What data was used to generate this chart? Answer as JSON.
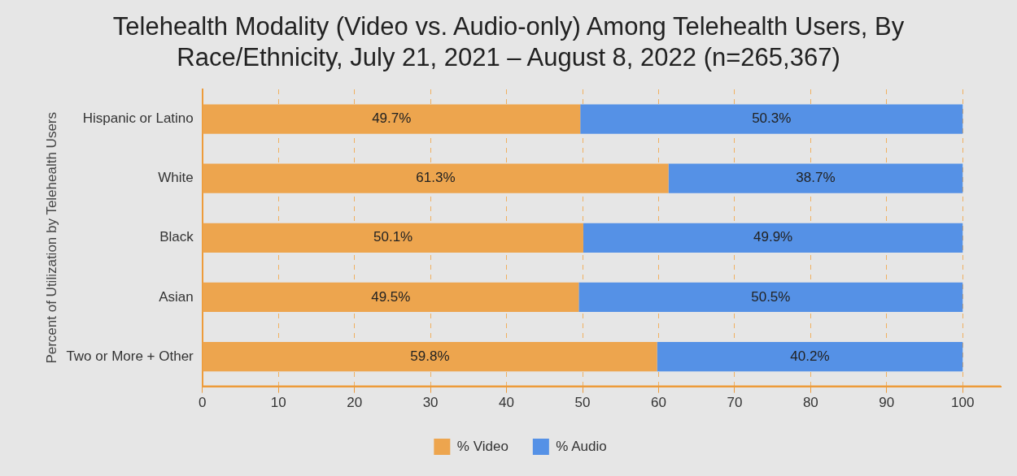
{
  "chart_data": {
    "type": "bar",
    "orientation": "horizontal",
    "stacked": true,
    "title": "Telehealth Modality (Video vs. Audio-only) Among Telehealth Users, By Race/Ethnicity, July 21, 2021 – August 8, 2022 (n=265,367)",
    "ylabel": "Percent of Utilization by Telehealth Users",
    "categories": [
      "Hispanic or Latino",
      "White",
      "Black",
      "Asian",
      "Two or More + Other"
    ],
    "series": [
      {
        "name": "% Video",
        "color": "#eda54e",
        "values": [
          49.7,
          61.3,
          50.1,
          49.5,
          59.8
        ],
        "value_labels": [
          "49.7%",
          "61.3%",
          "50.1%",
          "49.5%",
          "59.8%"
        ]
      },
      {
        "name": "% Audio",
        "color": "#5591e6",
        "values": [
          50.3,
          38.7,
          49.9,
          50.5,
          40.2
        ],
        "value_labels": [
          "50.3%",
          "38.7%",
          "49.9%",
          "50.5%",
          "40.2%"
        ]
      }
    ],
    "xlim": [
      0,
      105
    ],
    "xticks": [
      0,
      10,
      20,
      30,
      40,
      50,
      60,
      70,
      80,
      90,
      100
    ],
    "grid": "x",
    "legend": "bottom"
  }
}
